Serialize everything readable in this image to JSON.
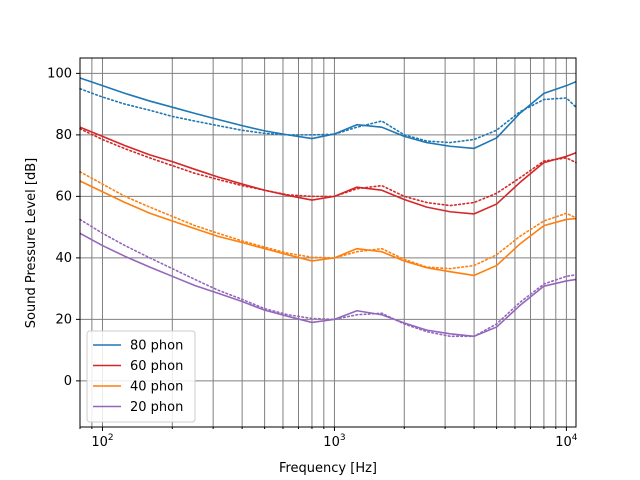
{
  "chart_data": {
    "type": "line",
    "xlabel": "Frequency [Hz]",
    "ylabel": "Sound Pressure Level [dB]",
    "x_scale": "log",
    "xlim": [
      80,
      11000
    ],
    "ylim": [
      -15,
      105
    ],
    "yticks": [
      0,
      20,
      40,
      60,
      80,
      100
    ],
    "xtick_labels": [
      {
        "value": 100,
        "base": "10",
        "exp": "2"
      },
      {
        "value": 1000,
        "base": "10",
        "exp": "3"
      },
      {
        "value": 10000,
        "base": "10",
        "exp": "4"
      }
    ],
    "x_gridlines": [
      80,
      90,
      100,
      200,
      300,
      400,
      500,
      600,
      700,
      800,
      900,
      1000,
      2000,
      3000,
      4000,
      5000,
      6000,
      7000,
      8000,
      9000,
      10000
    ],
    "grid": true,
    "legend_position": "lower-left",
    "x": [
      80,
      100,
      125,
      160,
      200,
      250,
      315,
      400,
      500,
      630,
      800,
      1000,
      1250,
      1600,
      2000,
      2500,
      3150,
      4000,
      5000,
      6300,
      8000,
      10000,
      11000
    ],
    "series": [
      {
        "name": "80 phon",
        "color": "#1f77b4",
        "style": "solid",
        "values": [
          98.5,
          96,
          93.5,
          91,
          89,
          87,
          85,
          83,
          81.3,
          80,
          78.8,
          80.3,
          83.3,
          82.5,
          79.5,
          77.5,
          76.3,
          75.6,
          79,
          87,
          93.5,
          96,
          97.3
        ]
      },
      {
        "name": "",
        "color": "#1f77b4",
        "style": "dotted",
        "values": [
          95,
          92.3,
          90,
          88,
          86,
          84.5,
          83,
          81.5,
          80.5,
          80,
          80,
          80.2,
          82.5,
          84.5,
          80,
          78,
          77.5,
          78.5,
          81.5,
          87.5,
          91.5,
          92,
          89
        ]
      },
      {
        "name": "60 phon",
        "color": "#d62728",
        "style": "solid",
        "values": [
          82.5,
          79.5,
          76.5,
          73.5,
          71.3,
          68.8,
          66.3,
          64,
          62,
          60.3,
          58.8,
          60,
          63,
          62,
          59,
          56.5,
          55,
          54.3,
          57.5,
          64.5,
          71,
          73,
          74.2
        ]
      },
      {
        "name": "",
        "color": "#d62728",
        "style": "dotted",
        "values": [
          82,
          78.5,
          75.5,
          72.5,
          70,
          67.5,
          65.5,
          63.5,
          62,
          60.5,
          60,
          60,
          62.5,
          63.5,
          60,
          58,
          57,
          58,
          61,
          66,
          71.5,
          72.5,
          71
        ]
      },
      {
        "name": "40 phon",
        "color": "#ff7f0e",
        "style": "solid",
        "values": [
          65,
          61.5,
          58,
          54.5,
          52,
          49.5,
          47,
          45,
          43,
          41,
          39,
          40,
          43,
          42,
          39,
          36.8,
          35.5,
          34.3,
          37.5,
          44.5,
          50.5,
          52.5,
          52.8
        ]
      },
      {
        "name": "",
        "color": "#ff7f0e",
        "style": "dotted",
        "values": [
          68,
          64,
          60,
          56.5,
          53.5,
          50.5,
          48,
          45.5,
          43.5,
          41.5,
          40.2,
          40,
          42,
          43,
          39.5,
          37,
          36.5,
          37.5,
          41,
          47,
          52,
          54.5,
          53
        ]
      },
      {
        "name": "20 phon",
        "color": "#9467bd",
        "style": "solid",
        "values": [
          48,
          44,
          40.5,
          37,
          34,
          31,
          28.5,
          25.8,
          23,
          21,
          19,
          20,
          22.8,
          21.5,
          18.8,
          16.5,
          15.3,
          14.5,
          17.5,
          24.5,
          30.8,
          32.5,
          33
        ]
      },
      {
        "name": "",
        "color": "#9467bd",
        "style": "dotted",
        "values": [
          52.5,
          48,
          44,
          40,
          36.5,
          33,
          29.5,
          26.5,
          23.5,
          21.5,
          20.3,
          20,
          21.5,
          22,
          18.5,
          16,
          14.5,
          14.5,
          18.5,
          25.5,
          31.5,
          34,
          34.5
        ]
      }
    ]
  }
}
